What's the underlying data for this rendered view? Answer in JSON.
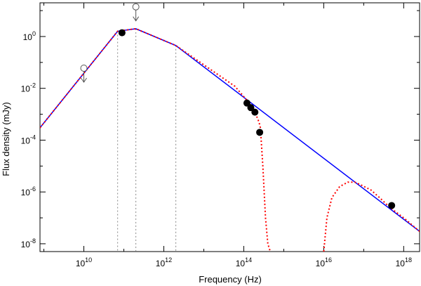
{
  "chart_data": {
    "type": "line",
    "title": "",
    "xlabel": "Frequency (Hz)",
    "ylabel": "Flux density (mJy)",
    "x_scale": "log",
    "y_scale": "log",
    "xlim": [
      800000000.0,
      2.5e+18
    ],
    "ylim": [
      5e-09,
      20
    ],
    "grid": false,
    "legend": "none",
    "x_tick_labels": [
      {
        "value": 10000000000.0,
        "base": "10",
        "exp": "10"
      },
      {
        "value": 1000000000000.0,
        "base": "10",
        "exp": "12"
      },
      {
        "value": 100000000000000.0,
        "base": "10",
        "exp": "14"
      },
      {
        "value": 1e+16,
        "base": "10",
        "exp": "16"
      },
      {
        "value": 1e+18,
        "base": "10",
        "exp": "18"
      }
    ],
    "y_tick_labels": [
      {
        "value": 1e-08,
        "base": "10",
        "exp": "-8"
      },
      {
        "value": 1e-06,
        "base": "10",
        "exp": "-6"
      },
      {
        "value": 0.0001,
        "base": "10",
        "exp": "-4"
      },
      {
        "value": 0.01,
        "base": "10",
        "exp": "-2"
      },
      {
        "value": 1,
        "base": "10",
        "exp": "0"
      }
    ],
    "series": [
      {
        "role": "intrinsic-model",
        "color": "#0000ff",
        "style": "solid",
        "x": [
          800000000.0,
          70000000000.0,
          200000000000.0,
          2000000000000.0,
          2.5e+18
        ],
        "y": [
          0.0003,
          1.6,
          2.0,
          0.45,
          3e-08
        ]
      },
      {
        "role": "model-plus-extinction",
        "color": "#ff0000",
        "style": "dotted",
        "x": [
          800000000.0,
          70000000000.0,
          200000000000.0,
          2000000000000.0,
          60000000000000.0,
          130000000000000.0,
          200000000000000.0,
          240000000000000.0,
          260000000000000.0,
          300000000000000.0,
          350000000000000.0,
          400000000000000.0,
          460000000000000.0
        ],
        "y": [
          0.0003,
          1.6,
          2.0,
          0.45,
          0.012,
          0.003,
          0.001,
          0.0005,
          0.0003,
          1e-05,
          1e-07,
          1e-08,
          5e-09
        ]
      },
      {
        "role": "model-plus-extinction-xray",
        "color": "#ff0000",
        "style": "dotted",
        "x": [
          1e+16,
          1.2e+16,
          1.6e+16,
          2.5e+16,
          4e+16,
          6e+16,
          9e+16,
          1.5e+17,
          2.5e+17,
          4e+17,
          6e+17,
          1e+18,
          2.5e+18
        ],
        "y": [
          5e-09,
          1e-07,
          6e-07,
          1.6e-06,
          2.4e-06,
          2.4e-06,
          1.8e-06,
          1.2e-06,
          6e-07,
          3e-07,
          1.8e-07,
          1e-07,
          3e-08
        ]
      }
    ],
    "detections": [
      {
        "x": 90000000000.0,
        "y": 1.4
      },
      {
        "x": 120000000000000.0,
        "y": 0.0027
      },
      {
        "x": 150000000000000.0,
        "y": 0.0018
      },
      {
        "x": 190000000000000.0,
        "y": 0.0012
      },
      {
        "x": 250000000000000.0,
        "y": 0.0002
      },
      {
        "x": 5e+17,
        "y": 3e-07
      }
    ],
    "upper_limits": [
      {
        "x": 10000000000.0,
        "y": 0.06
      },
      {
        "x": 200000000000.0,
        "y": 14
      }
    ],
    "break_frequencies": [
      70000000000.0,
      200000000000.0,
      2000000000000.0
    ]
  }
}
